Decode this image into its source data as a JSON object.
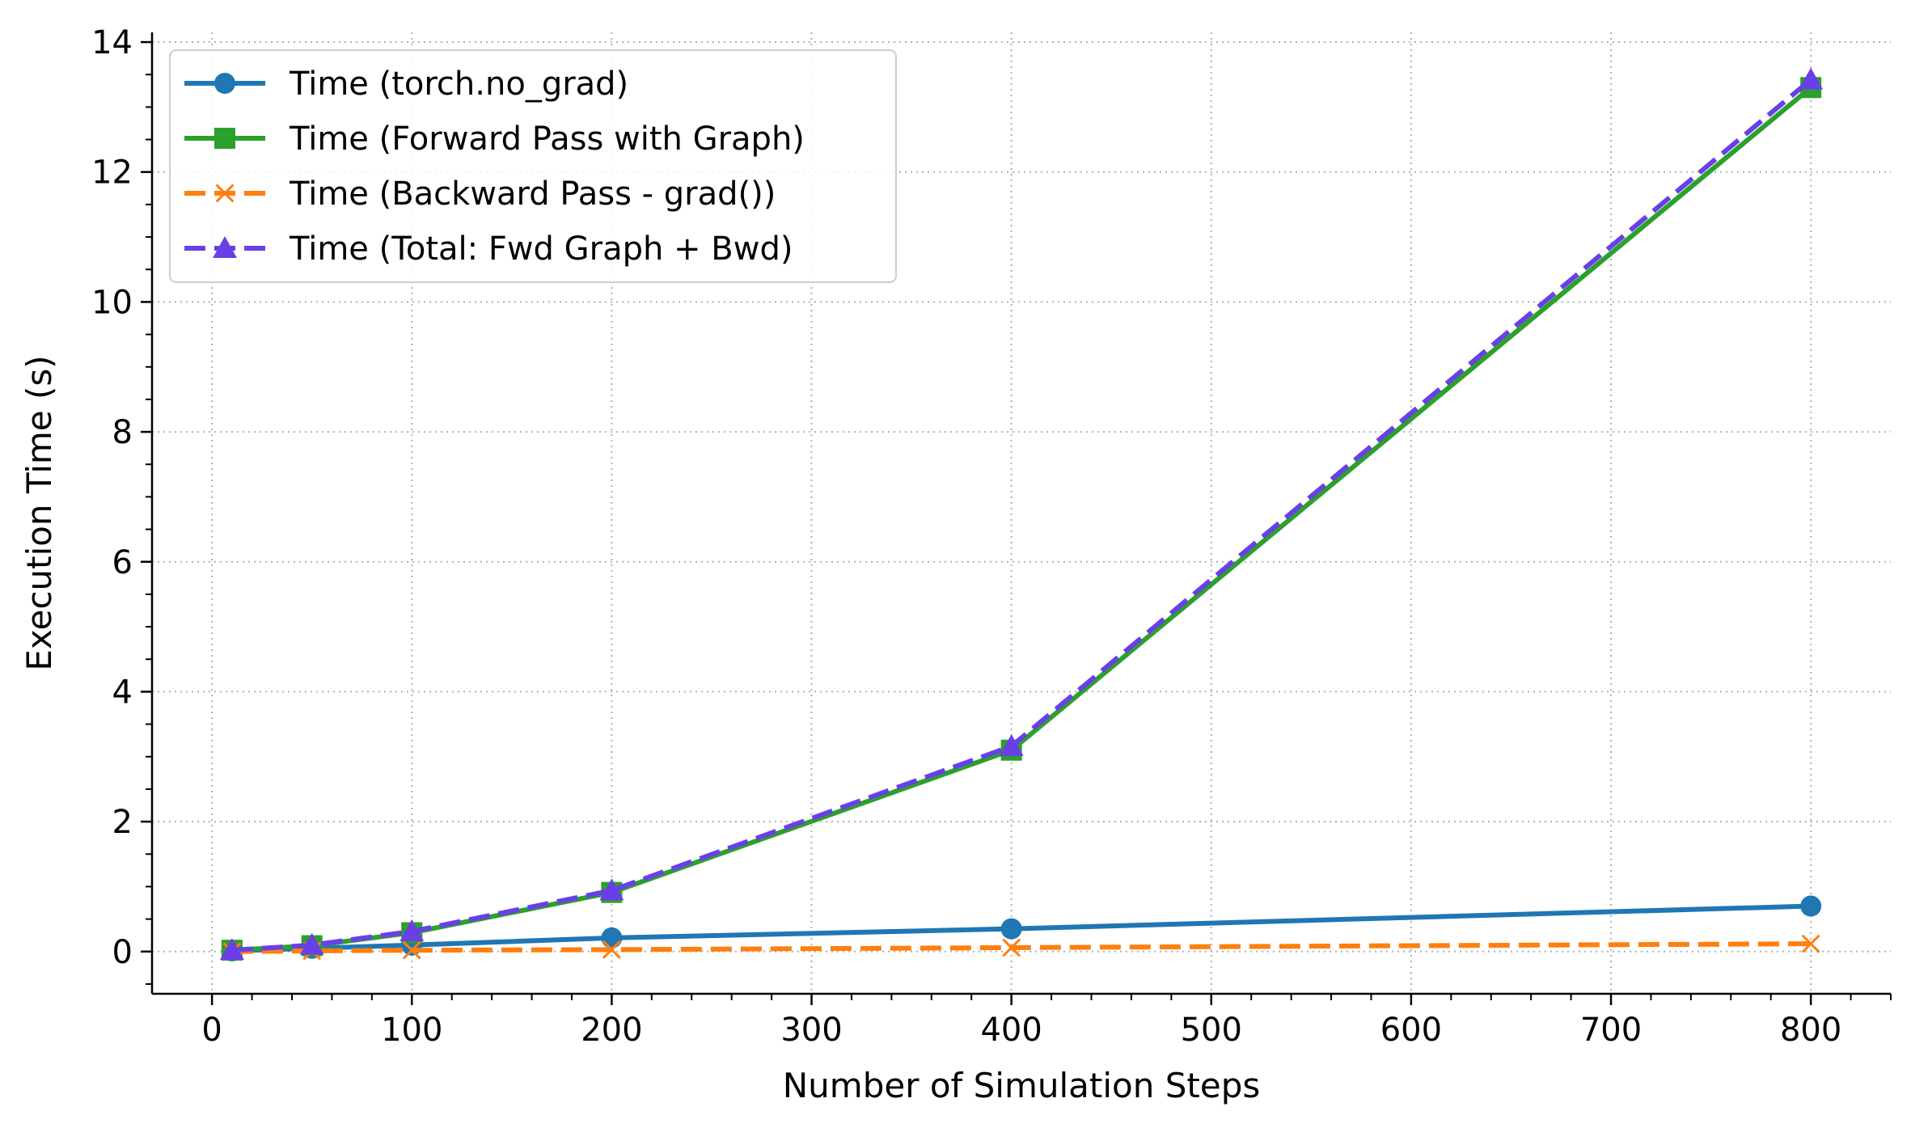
{
  "chart_data": {
    "type": "line",
    "title": "",
    "xlabel": "Number of Simulation Steps",
    "ylabel": "Execution Time (s)",
    "xlim": [
      -30,
      840
    ],
    "ylim": [
      -0.65,
      14.15
    ],
    "xticks": [
      0,
      100,
      200,
      300,
      400,
      500,
      600,
      700,
      800
    ],
    "yticks": [
      0,
      2,
      4,
      6,
      8,
      10,
      12,
      14
    ],
    "x_minor_step": 20,
    "y_minor_step": 0.5,
    "grid": true,
    "legend_position": "upper-left",
    "x": [
      10,
      50,
      100,
      200,
      400,
      800
    ],
    "series": [
      {
        "name": "Time (torch.no_grad)",
        "color": "#1f77b4",
        "line_style": "solid",
        "marker": "circle",
        "values": [
          0.01,
          0.05,
          0.1,
          0.21,
          0.35,
          0.7
        ]
      },
      {
        "name": "Time (Forward Pass with Graph)",
        "color": "#2ca02c",
        "line_style": "solid",
        "marker": "square",
        "values": [
          0.02,
          0.09,
          0.29,
          0.91,
          3.1,
          13.3
        ]
      },
      {
        "name": "Time (Backward Pass - grad())",
        "color": "#ff7f0e",
        "line_style": "dashed",
        "marker": "x",
        "values": [
          0.0,
          0.01,
          0.02,
          0.03,
          0.06,
          0.12
        ]
      },
      {
        "name": "Time (Total: Fwd Graph + Bwd)",
        "color": "#6a3fe8",
        "line_style": "dashed",
        "marker": "triangle",
        "values": [
          0.02,
          0.1,
          0.31,
          0.94,
          3.16,
          13.42
        ]
      }
    ]
  }
}
